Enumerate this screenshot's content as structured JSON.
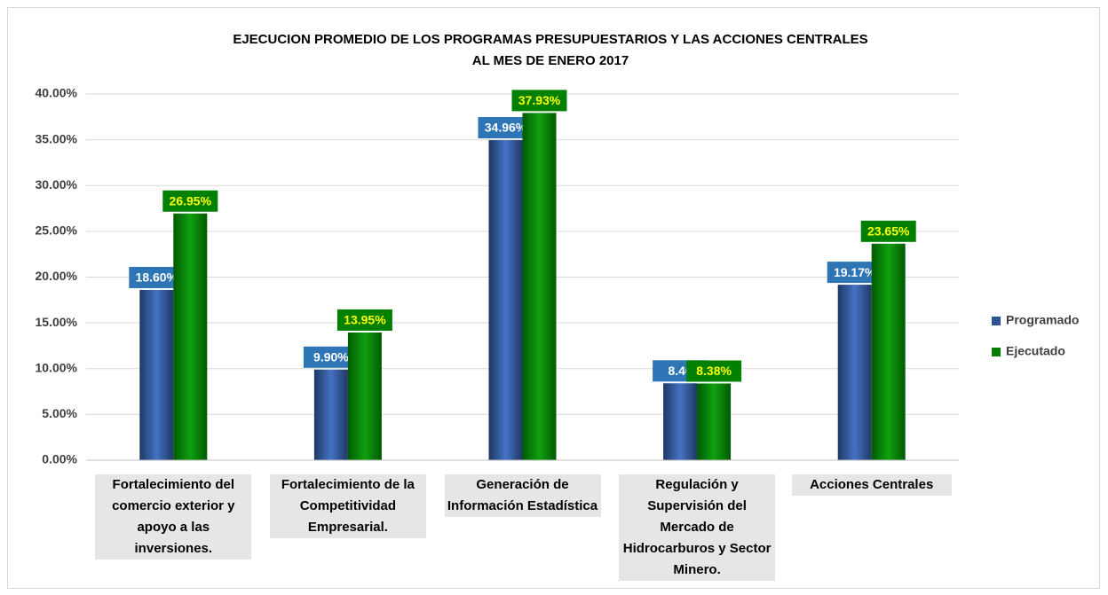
{
  "chart_data": {
    "type": "bar",
    "title": [
      "EJECUCION PROMEDIO DE LOS PROGRAMAS PRESUPUESTARIOS Y LAS ACCIONES CENTRALES",
      "AL MES DE ENERO 2017"
    ],
    "categories": [
      "Fortalecimiento del comercio exterior y apoyo a las inversiones.",
      "Fortalecimiento de la Competitividad Empresarial.",
      "Generación de Información Estadística",
      "Regulación y Supervisión del Mercado de Hidrocarburos y Sector Minero.",
      "Acciones Centrales"
    ],
    "series": [
      {
        "name": "Programado",
        "color": "#2f5597",
        "label_color": "#2e75b6",
        "label_text_color": "#ffffff",
        "values": [
          18.6,
          9.9,
          34.96,
          8.4,
          19.17
        ],
        "value_labels": [
          "18.60%",
          "9.90%",
          "34.96%",
          "8.40",
          "19.17%"
        ]
      },
      {
        "name": "Ejecutado",
        "color": "#008000",
        "label_color": "#008000",
        "label_text_color": "#ffff00",
        "values": [
          26.95,
          13.95,
          37.93,
          8.38,
          23.65
        ],
        "value_labels": [
          "26.95%",
          "13.95%",
          "37.93%",
          "8.38%",
          "23.65%"
        ]
      }
    ],
    "ylim": [
      0,
      40
    ],
    "yticks": [
      {
        "value": 0,
        "label": "0.00%"
      },
      {
        "value": 5,
        "label": "5.00%"
      },
      {
        "value": 10,
        "label": "10.00%"
      },
      {
        "value": 15,
        "label": "15.00%"
      },
      {
        "value": 20,
        "label": "20.00%"
      },
      {
        "value": 25,
        "label": "25.00%"
      },
      {
        "value": 30,
        "label": "30.00%"
      },
      {
        "value": 35,
        "label": "35.00%"
      },
      {
        "value": 40,
        "label": "40.00%"
      }
    ],
    "grid": true,
    "legend": "right"
  }
}
